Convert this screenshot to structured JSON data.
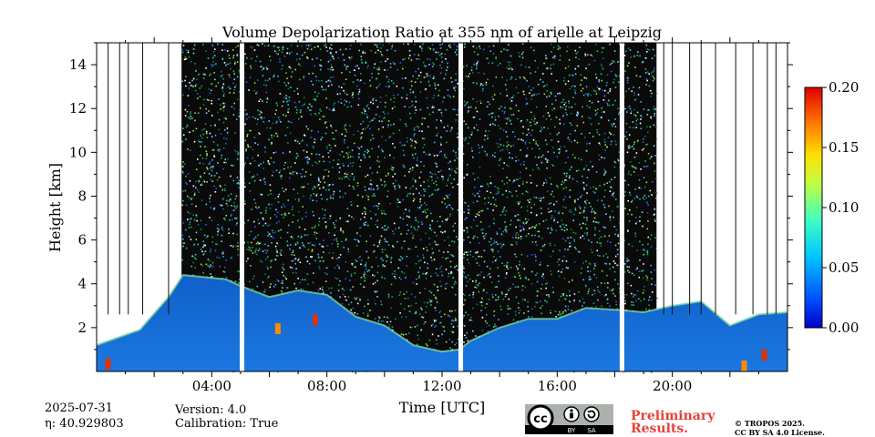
{
  "chart_data": {
    "type": "heatmap",
    "title": "Volume Depolarization Ratio at 355 nm of arielle at Leipzig",
    "xlabel": "Time [UTC]",
    "ylabel": "Height [km]",
    "xlim": [
      0,
      24
    ],
    "ylim": [
      0,
      15
    ],
    "x_ticks": [
      {
        "value": 4,
        "label": "04:00"
      },
      {
        "value": 8,
        "label": "08:00"
      },
      {
        "value": 12,
        "label": "12:00"
      },
      {
        "value": 16,
        "label": "16:00"
      },
      {
        "value": 20,
        "label": "20:00"
      }
    ],
    "y_ticks": [
      {
        "value": 2,
        "label": "2"
      },
      {
        "value": 4,
        "label": "4"
      },
      {
        "value": 6,
        "label": "6"
      },
      {
        "value": 8,
        "label": "8"
      },
      {
        "value": 10,
        "label": "10"
      },
      {
        "value": 12,
        "label": "12"
      },
      {
        "value": 14,
        "label": "14"
      }
    ],
    "colorbar": {
      "min": 0.0,
      "max": 0.2,
      "ticks": [
        "0.00",
        "0.05",
        "0.10",
        "0.15",
        "0.20"
      ],
      "colormap": "jet"
    },
    "data_gaps_utc": [
      5.05,
      12.65,
      18.25
    ],
    "boundary_layer_top_km": [
      {
        "t": 0.0,
        "h": 1.2
      },
      {
        "t": 1.5,
        "h": 1.9
      },
      {
        "t": 2.5,
        "h": 3.4
      },
      {
        "t": 3.0,
        "h": 4.4
      },
      {
        "t": 4.5,
        "h": 4.2
      },
      {
        "t": 5.0,
        "h": 3.9
      },
      {
        "t": 6.0,
        "h": 3.4
      },
      {
        "t": 7.0,
        "h": 3.7
      },
      {
        "t": 8.0,
        "h": 3.5
      },
      {
        "t": 9.0,
        "h": 2.5
      },
      {
        "t": 10.0,
        "h": 2.1
      },
      {
        "t": 11.0,
        "h": 1.2
      },
      {
        "t": 12.0,
        "h": 0.9
      },
      {
        "t": 12.6,
        "h": 1.0
      },
      {
        "t": 13.0,
        "h": 1.4
      },
      {
        "t": 14.0,
        "h": 2.0
      },
      {
        "t": 15.0,
        "h": 2.4
      },
      {
        "t": 16.0,
        "h": 2.4
      },
      {
        "t": 17.0,
        "h": 2.9
      },
      {
        "t": 18.2,
        "h": 2.8
      },
      {
        "t": 19.0,
        "h": 2.7
      },
      {
        "t": 20.0,
        "h": 3.0
      },
      {
        "t": 21.0,
        "h": 3.2
      },
      {
        "t": 22.0,
        "h": 2.1
      },
      {
        "t": 23.0,
        "h": 2.6
      },
      {
        "t": 24.0,
        "h": 2.7
      }
    ]
  },
  "footer": {
    "date": "2025-07-31",
    "eta": "η: 40.929803",
    "version": "Version: 4.0",
    "calibration": "Calibration: True",
    "preliminary_line1": "Preliminary",
    "preliminary_line2": "Results.",
    "copyright_line1": "© TROPOS 2025.",
    "copyright_line2": "CC BY SA 4.0 License.",
    "badge_left": "BY",
    "badge_right": "SA"
  },
  "colors": {
    "noise_bg": "#0a0a0a",
    "aerosol_low": "#1060c8",
    "gap": "#ffffff",
    "preliminary": "#e8403a"
  }
}
